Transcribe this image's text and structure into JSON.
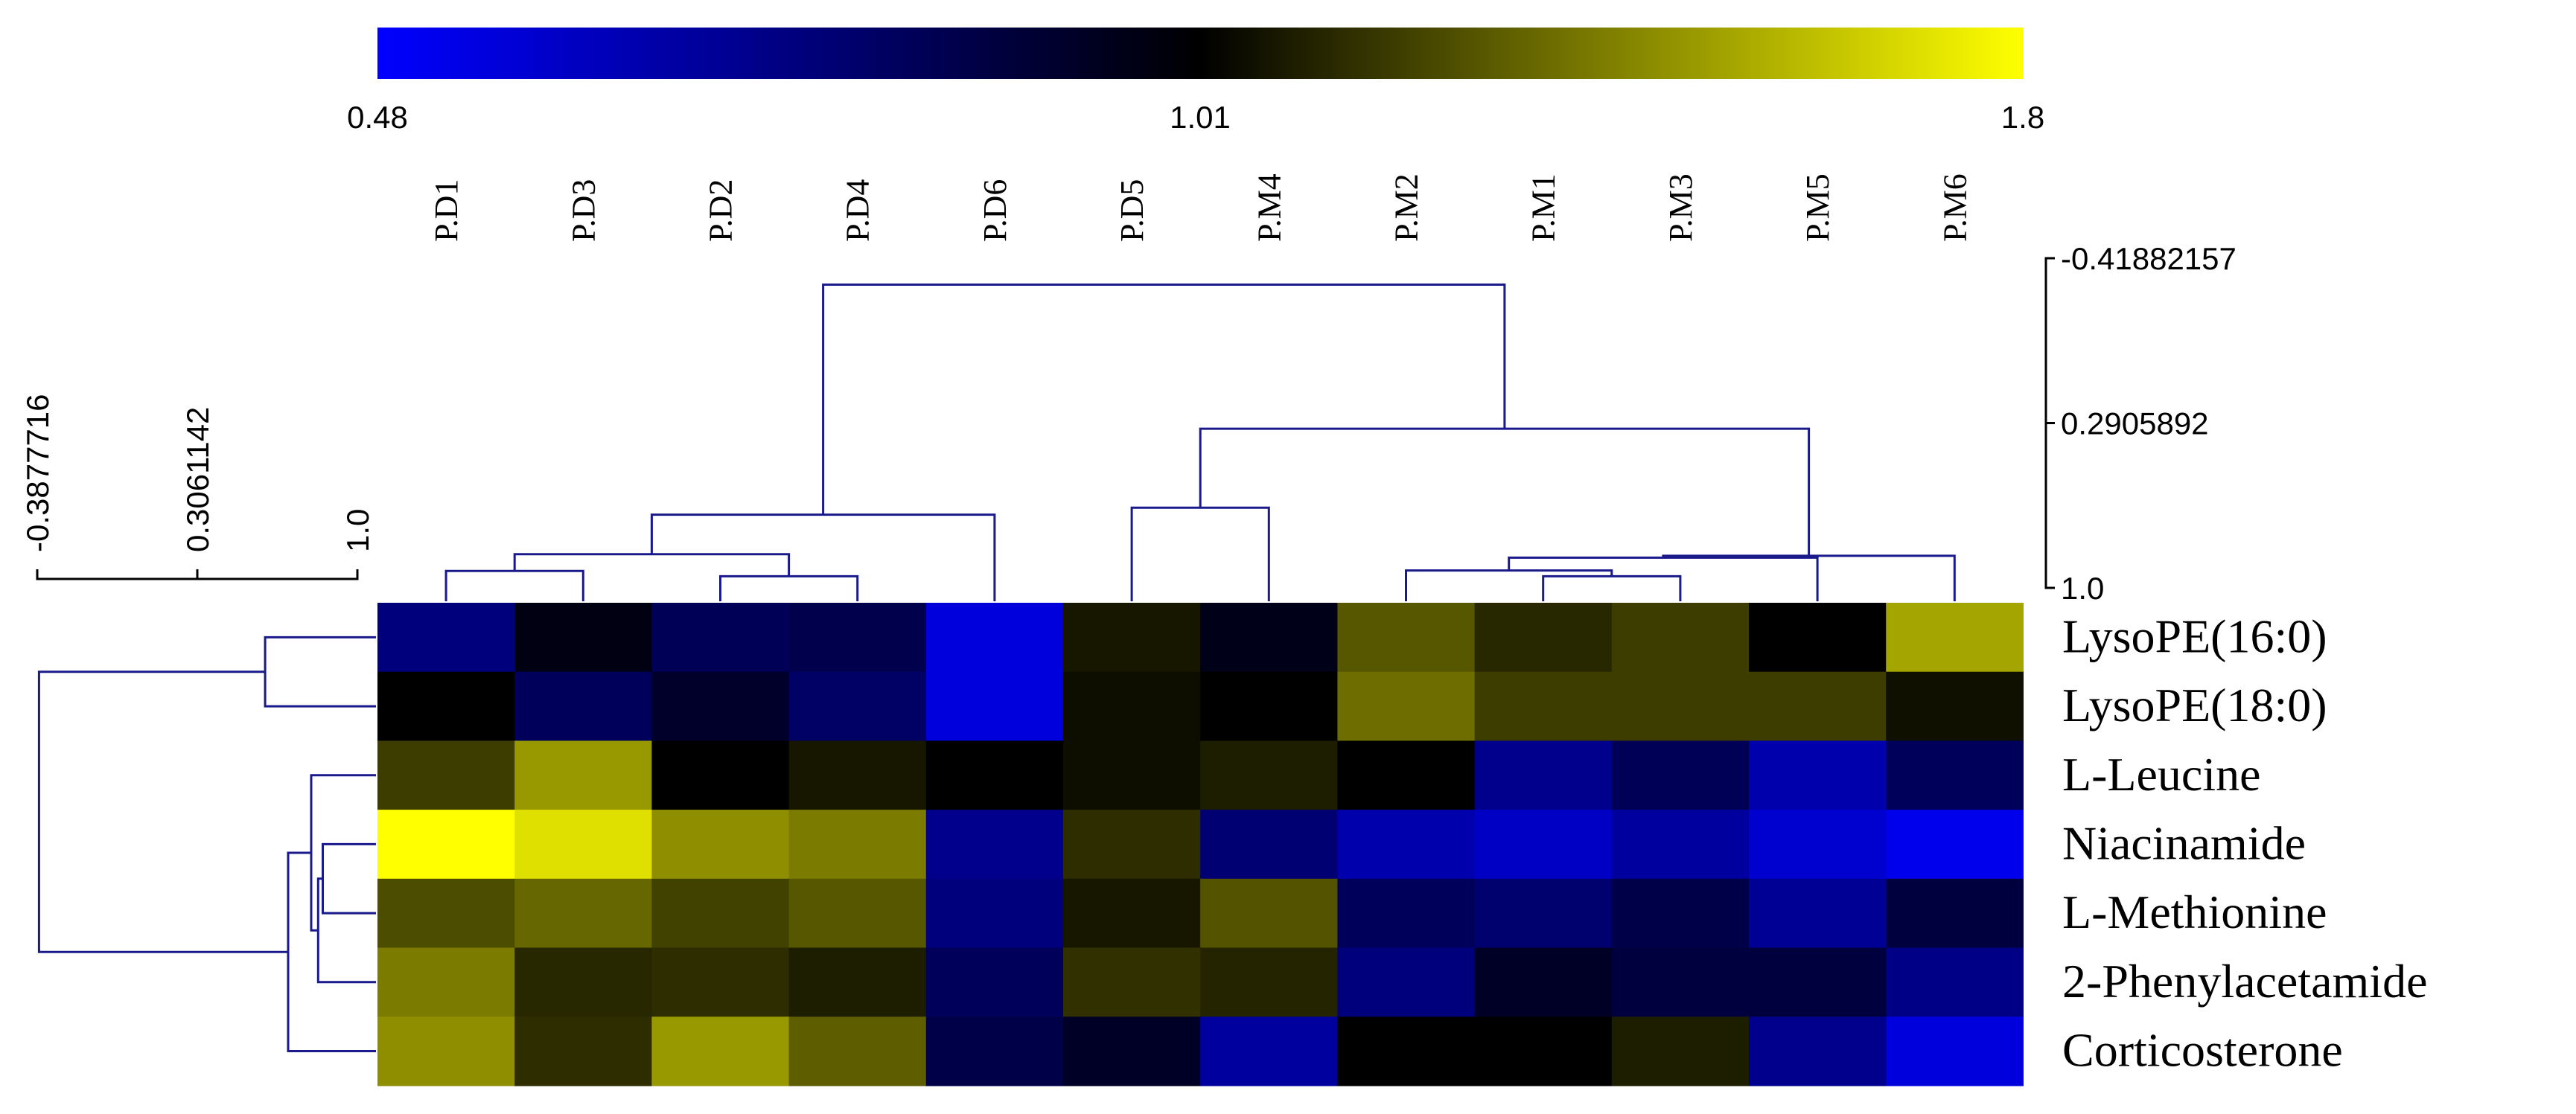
{
  "chart_data": {
    "type": "heatmap",
    "title": "",
    "colorbar": {
      "min_label": "0.48",
      "mid_label": "1.01",
      "max_label": "1.8",
      "min": 0.48,
      "mid": 1.01,
      "max": 1.8,
      "colors": [
        "#0000ff",
        "#000000",
        "#ffff00"
      ]
    },
    "columns": [
      "P.D1",
      "P.D3",
      "P.D2",
      "P.D4",
      "P.D6",
      "P.D5",
      "P.M4",
      "P.M2",
      "P.M1",
      "P.M3",
      "P.M5",
      "P.M6"
    ],
    "rows": [
      "LysoPE(16:0)",
      "LysoPE(18:0)",
      "L-Leucine",
      "Niacinamide",
      "L-Methionine",
      "2-Phenylacetamide",
      "Corticosterone"
    ],
    "values": [
      [
        0.75,
        0.97,
        0.83,
        0.85,
        0.55,
        1.08,
        0.96,
        1.28,
        1.13,
        1.2,
        1.01,
        1.52
      ],
      [
        1.01,
        0.82,
        0.92,
        0.8,
        0.55,
        1.05,
        1.01,
        1.35,
        1.2,
        1.2,
        1.2,
        1.06
      ],
      [
        1.2,
        1.48,
        1.01,
        1.08,
        1.01,
        1.05,
        1.1,
        1.01,
        0.72,
        0.83,
        0.65,
        0.82
      ],
      [
        1.8,
        1.7,
        1.45,
        1.39,
        0.72,
        1.15,
        0.77,
        0.65,
        0.6,
        0.68,
        0.58,
        0.52
      ],
      [
        1.25,
        1.33,
        1.21,
        1.28,
        0.75,
        1.08,
        1.27,
        0.82,
        0.78,
        0.86,
        0.7,
        0.88
      ],
      [
        1.39,
        1.13,
        1.15,
        1.1,
        0.82,
        1.16,
        1.12,
        0.75,
        0.93,
        0.88,
        0.88,
        0.73
      ],
      [
        1.45,
        1.15,
        1.48,
        1.3,
        0.86,
        0.93,
        0.68,
        1.01,
        1.01,
        1.1,
        0.72,
        0.55
      ]
    ],
    "column_dendrogram": {
      "scale_labels": [
        "-0.41882157",
        "0.2905892",
        "1.0"
      ],
      "scale_values": [
        -0.41882157,
        0.2905892,
        1.0
      ],
      "merges": [
        [
          0,
          1,
          0.927
        ],
        [
          2,
          3,
          0.95
        ],
        [
          12,
          13,
          0.855
        ],
        [
          14,
          4,
          0.685
        ],
        [
          5,
          6,
          0.655
        ],
        [
          8,
          9,
          0.95
        ],
        [
          17,
          7,
          0.925
        ],
        [
          18,
          10,
          0.87
        ],
        [
          19,
          11,
          0.862
        ],
        [
          16,
          20,
          0.315
        ],
        [
          15,
          21,
          -0.305
        ]
      ]
    },
    "row_dendrogram": {
      "scale_labels": [
        "-0.3877716",
        "0.3061142",
        "1.0"
      ],
      "scale_values": [
        -0.3877716,
        0.3061142,
        1.0
      ],
      "merges": [
        [
          0,
          1,
          0.6
        ],
        [
          3,
          4,
          0.85
        ],
        [
          8,
          5,
          0.83
        ],
        [
          2,
          9,
          0.8
        ],
        [
          10,
          6,
          0.7
        ],
        [
          7,
          11,
          -0.38
        ]
      ]
    }
  }
}
